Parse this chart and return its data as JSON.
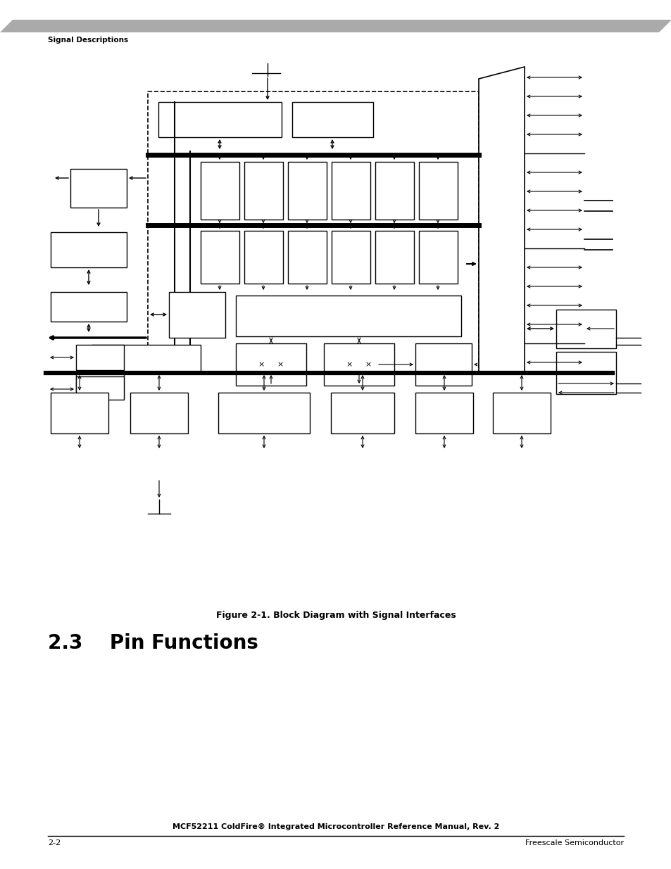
{
  "page_bg": "#ffffff",
  "header_bar_color": "#aaaaaa",
  "header_text": "Signal Descriptions",
  "footer_left": "2-2",
  "footer_right": "Freescale Semiconductor",
  "footer_center": "MCF52211 ColdFire® Integrated Microcontroller Reference Manual, Rev. 2",
  "figure_caption": "Figure 2-1. Block Diagram with Signal Interfaces",
  "section_number": "2.3",
  "section_title": "Pin Functions"
}
